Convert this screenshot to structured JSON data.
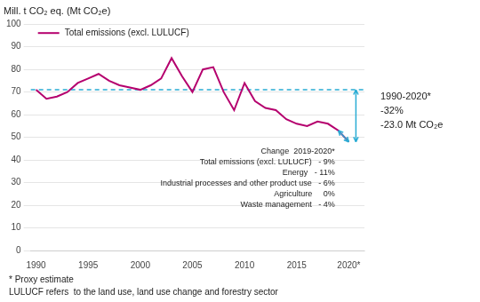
{
  "chart_data": {
    "type": "line",
    "y_label": "Mill. t CO₂ eq. (Mt CO₂e)",
    "x": [
      1990,
      1991,
      1992,
      1993,
      1994,
      1995,
      1996,
      1997,
      1998,
      1999,
      2000,
      2001,
      2002,
      2003,
      2004,
      2005,
      2006,
      2007,
      2008,
      2009,
      2010,
      2011,
      2012,
      2013,
      2014,
      2015,
      2016,
      2017,
      2018,
      2019,
      2020
    ],
    "series": [
      {
        "name": "Total emissions (excl. LULUCF)",
        "color": "#b5006e",
        "values": [
          71,
          67,
          68,
          70,
          74,
          76,
          78,
          75,
          73,
          72,
          71,
          73,
          76,
          85,
          77,
          70,
          80,
          81,
          70,
          62,
          74,
          66,
          63,
          62,
          58,
          56,
          55,
          57,
          56,
          53,
          48
        ]
      }
    ],
    "xlim": [
      1989.5,
      2021.5
    ],
    "xticks": [
      1990,
      1995,
      2000,
      2005,
      2010,
      2015,
      {
        "value": 2020,
        "label": "2020*"
      }
    ],
    "ylim": [
      0,
      100
    ],
    "yticks": [
      0,
      10,
      20,
      30,
      40,
      50,
      60,
      70,
      80,
      90,
      100
    ],
    "grid": true,
    "legend": "upper left",
    "reference_line": {
      "value": 71,
      "color": "#29acd4"
    },
    "arrows": [
      {
        "from": [
          2020,
          71
        ],
        "to": [
          2020,
          48
        ],
        "color": "#29acd4"
      },
      {
        "from": [
          2019,
          53
        ],
        "to": [
          2020,
          48
        ],
        "color": "#29acd4"
      }
    ],
    "annotations": {
      "right": "1990-2020*\n-32%\n-23.0 Mt CO₂e",
      "change_table": [
        "Change  2019-2020*",
        "Total emissions (excl. LULUCF)   - 9%",
        "Energy   - 11%",
        "Industrial processes and other product use   - 6%",
        "Agriculture     0%",
        "Waste management   - 4%"
      ]
    },
    "footnotes": [
      "* Proxy estimate",
      "LULUCF refers  to the land use, land use change and forestry sector"
    ]
  }
}
